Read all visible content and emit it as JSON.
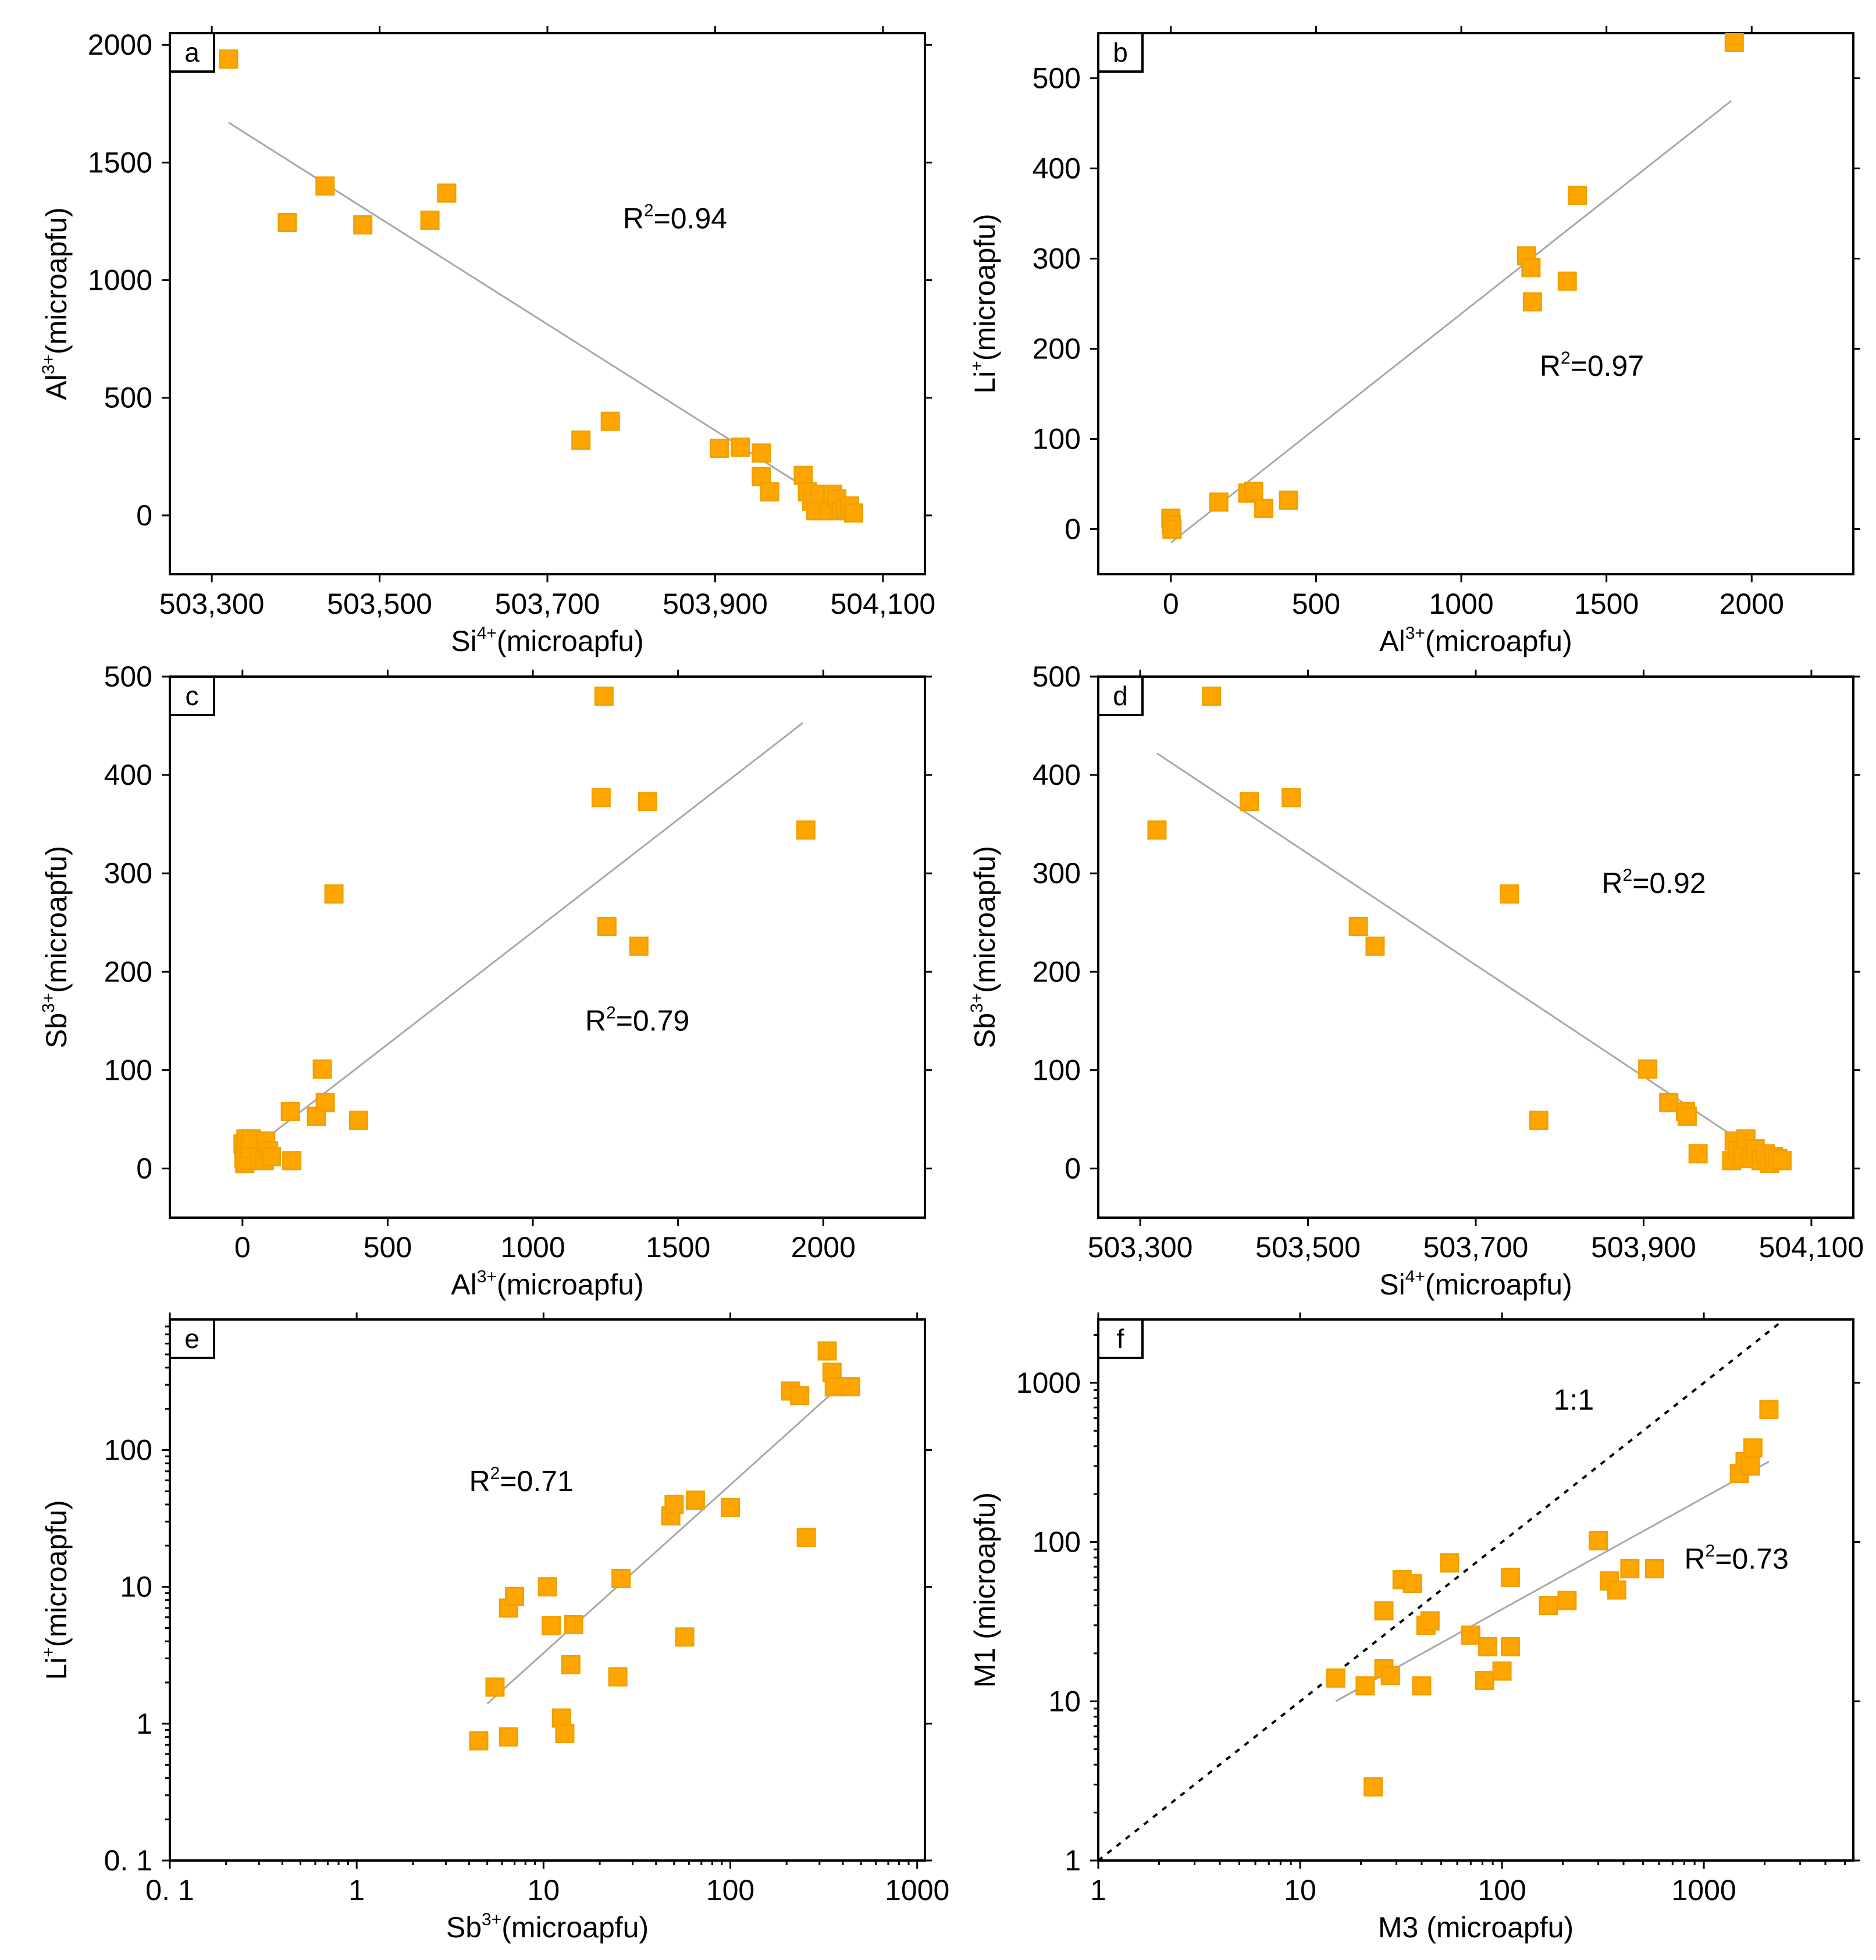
{
  "figure": {
    "marker_color": "#ffa500",
    "marker_edge_color": "#f0a000",
    "fit_color": "#a8a8a8"
  },
  "chart_data": [
    {
      "id": "a",
      "type": "scatter",
      "panel_label": "a",
      "xscale": "linear",
      "yscale": "linear",
      "xlim": [
        503250,
        504150
      ],
      "ylim": [
        -250,
        2050
      ],
      "xticks": [
        503300,
        503500,
        503700,
        503900,
        504100
      ],
      "xtick_labels": [
        "503,300",
        "503,500",
        "503,700",
        "503,900",
        "504,100"
      ],
      "yticks": [
        0,
        500,
        1000,
        1500,
        2000
      ],
      "ytick_labels": [
        "0",
        "500",
        "1000",
        "1500",
        "2000"
      ],
      "xlabel": {
        "base": "Si",
        "sup": "4+",
        "rest": "(microapfu)"
      },
      "ylabel": {
        "base": "Al",
        "sup": "3+",
        "rest": "(microapfu)"
      },
      "annotation": {
        "text": "R",
        "sup": "2",
        "rest": "=0.94",
        "x": 503790,
        "y": 1220
      },
      "fit": {
        "x": [
          503320,
          504060
        ],
        "y": [
          1670,
          0
        ]
      },
      "x": [
        503320,
        503390,
        503435,
        503480,
        503560,
        503580,
        503740,
        503775,
        503905,
        503930,
        503955,
        503955,
        503965,
        504005,
        504010,
        504015,
        504020,
        504025,
        504035,
        504040,
        504045,
        504050,
        504055,
        504060,
        504065
      ],
      "y": [
        1940,
        1245,
        1400,
        1235,
        1255,
        1370,
        320,
        400,
        285,
        290,
        265,
        165,
        100,
        170,
        100,
        60,
        20,
        90,
        20,
        90,
        70,
        20,
        30,
        40,
        10
      ]
    },
    {
      "id": "b",
      "type": "scatter",
      "panel_label": "b",
      "xscale": "linear",
      "yscale": "linear",
      "xlim": [
        -250,
        2350
      ],
      "ylim": [
        -50,
        550
      ],
      "xticks": [
        0,
        500,
        1000,
        1500,
        2000
      ],
      "xtick_labels": [
        "0",
        "500",
        "1000",
        "1500",
        "2000"
      ],
      "yticks": [
        0,
        100,
        200,
        300,
        400,
        500
      ],
      "ytick_labels": [
        "0",
        "100",
        "200",
        "300",
        "400",
        "500"
      ],
      "xlabel": {
        "base": "Al",
        "sup": "3+",
        "rest": "(microapfu)"
      },
      "ylabel": {
        "base": "Li",
        "sup": "+",
        "rest": "(microapfu)"
      },
      "annotation": {
        "text": "R",
        "sup": "2",
        "rest": "=0.97",
        "x": 1270,
        "y": 170
      },
      "fit": {
        "x": [
          0,
          1930
        ],
        "y": [
          -15,
          475
        ]
      },
      "x": [
        0,
        2,
        4,
        165,
        265,
        285,
        320,
        405,
        1225,
        1240,
        1245,
        1365,
        1400,
        1940
      ],
      "y": [
        12,
        5,
        0,
        30,
        40,
        42,
        23,
        32,
        303,
        290,
        252,
        275,
        370,
        540
      ]
    },
    {
      "id": "c",
      "type": "scatter",
      "panel_label": "c",
      "xscale": "linear",
      "yscale": "linear",
      "xlim": [
        -250,
        2350
      ],
      "ylim": [
        -50,
        500
      ],
      "xticks": [
        0,
        500,
        1000,
        1500,
        2000
      ],
      "xtick_labels": [
        "0",
        "500",
        "1000",
        "1500",
        "2000"
      ],
      "yticks": [
        0,
        100,
        200,
        300,
        400,
        500
      ],
      "ytick_labels": [
        "0",
        "100",
        "200",
        "300",
        "400",
        "500"
      ],
      "xlabel": {
        "base": "Al",
        "sup": "3+",
        "rest": "(microapfu)"
      },
      "ylabel": {
        "base": "Sb",
        "sup": "3+",
        "rest": "(microapfu)"
      },
      "annotation": {
        "text": "R",
        "sup": "2",
        "rest": "=0.79",
        "x": 1180,
        "y": 140
      },
      "fit": {
        "x": [
          0,
          1930
        ],
        "y": [
          12,
          453
        ]
      },
      "x": [
        2,
        5,
        8,
        10,
        12,
        20,
        25,
        30,
        60,
        75,
        80,
        90,
        100,
        165,
        170,
        255,
        275,
        285,
        315,
        400,
        1235,
        1245,
        1255,
        1365,
        1395,
        1940
      ],
      "y": [
        25,
        10,
        5,
        15,
        30,
        8,
        20,
        30,
        12,
        8,
        28,
        18,
        12,
        58,
        8,
        53,
        101,
        67,
        279,
        49,
        377,
        480,
        246,
        226,
        373,
        344
      ]
    },
    {
      "id": "d",
      "type": "scatter",
      "panel_label": "d",
      "xscale": "linear",
      "yscale": "linear",
      "xlim": [
        503250,
        504150
      ],
      "ylim": [
        -50,
        500
      ],
      "xticks": [
        503300,
        503500,
        503700,
        503900,
        504100
      ],
      "xtick_labels": [
        "503,300",
        "503,500",
        "503,700",
        "503,900",
        "504,100"
      ],
      "yticks": [
        0,
        100,
        200,
        300,
        400,
        500
      ],
      "ytick_labels": [
        "0",
        "100",
        "200",
        "300",
        "400",
        "500"
      ],
      "xlabel": {
        "base": "Si",
        "sup": "4+",
        "rest": "(microapfu)"
      },
      "ylabel": {
        "base": "Sb",
        "sup": "3+",
        "rest": "(microapfu)"
      },
      "annotation": {
        "text": "R",
        "sup": "2",
        "rest": "=0.92",
        "x": 503850,
        "y": 280
      },
      "fit": {
        "x": [
          503320,
          504065
        ],
        "y": [
          422,
          0
        ]
      },
      "x": [
        503320,
        503385,
        503430,
        503480,
        503560,
        503580,
        503740,
        503775,
        503905,
        503930,
        503950,
        503952,
        503965,
        504005,
        504008,
        504012,
        504018,
        504022,
        504028,
        504033,
        504040,
        504045,
        504050,
        504055,
        504060,
        504065
      ],
      "y": [
        344,
        480,
        373,
        377,
        246,
        226,
        279,
        49,
        101,
        67,
        58,
        53,
        15,
        8,
        28,
        18,
        12,
        30,
        10,
        20,
        8,
        15,
        5,
        12,
        10,
        8
      ]
    },
    {
      "id": "e",
      "type": "scatter",
      "panel_label": "e",
      "xscale": "log",
      "yscale": "log",
      "xlim": [
        0.1,
        1100
      ],
      "ylim": [
        0.1,
        900
      ],
      "xticks": [
        0.1,
        1,
        10,
        100,
        1000
      ],
      "xtick_labels": [
        "0. 1",
        "1",
        "10",
        "100",
        "1000"
      ],
      "yticks": [
        0.1,
        1,
        10,
        100
      ],
      "ytick_labels": [
        "0. 1",
        "1",
        "10",
        "100"
      ],
      "xlabel": {
        "base": "Sb",
        "sup": "3+",
        "rest": "(microapfu)"
      },
      "ylabel": {
        "base": "Li",
        "sup": "+",
        "rest": "(microapfu)"
      },
      "annotation": {
        "text": "R",
        "sup": "2",
        "rest": "=0.71",
        "x": 4,
        "y": 50
      },
      "fit": {
        "x": [
          5,
          350
        ],
        "y": [
          1.4,
          260
        ]
      },
      "x": [
        4.5,
        5.5,
        6.5,
        6.5,
        7,
        10.5,
        11,
        12.5,
        13,
        14,
        14.5,
        25,
        26,
        48,
        50,
        57,
        65,
        100,
        210,
        235,
        255,
        330,
        350,
        360,
        440
      ],
      "y": [
        0.75,
        1.85,
        0.8,
        7,
        8.5,
        10,
        5.2,
        1.1,
        0.85,
        2.7,
        5.3,
        2.2,
        11.5,
        33,
        40,
        4.3,
        43,
        38,
        270,
        250,
        23,
        530,
        370,
        290,
        290
      ]
    },
    {
      "id": "f",
      "type": "scatter",
      "panel_label": "f",
      "xscale": "log",
      "yscale": "log",
      "xlim": [
        1,
        5500
      ],
      "ylim": [
        1,
        2500
      ],
      "xticks": [
        1,
        10,
        100,
        1000
      ],
      "xtick_labels": [
        "1",
        "10",
        "100",
        "1000"
      ],
      "yticks": [
        1,
        10,
        100,
        1000
      ],
      "ytick_labels": [
        "1",
        "10",
        "100",
        "1000"
      ],
      "xlabel": {
        "base": "M3 (microapfu)",
        "sup": "",
        "rest": ""
      },
      "ylabel": {
        "base": "M1 (microapfu)",
        "sup": "",
        "rest": ""
      },
      "annotation": {
        "text": "R",
        "sup": "2",
        "rest": "=0.73",
        "x": 800,
        "y": 68
      },
      "identity_label": "1:1",
      "identity_label_pos": {
        "x": 180,
        "y": 680
      },
      "fit": {
        "x": [
          15,
          2100
        ],
        "y": [
          10,
          320
        ]
      },
      "x": [
        15,
        21,
        23,
        26,
        26,
        28,
        32,
        36,
        40,
        42,
        44,
        55,
        70,
        82,
        85,
        100,
        110,
        110,
        170,
        210,
        300,
        340,
        370,
        430,
        570,
        1500,
        1600,
        1700,
        1750,
        2100
      ],
      "y": [
        14,
        12.5,
        2.9,
        37,
        16,
        14.5,
        58,
        55,
        12.5,
        30,
        32,
        74,
        26,
        13.5,
        22,
        15.5,
        22,
        60,
        40,
        43,
        102,
        57,
        50,
        68,
        68,
        270,
        320,
        300,
        390,
        680
      ]
    }
  ]
}
